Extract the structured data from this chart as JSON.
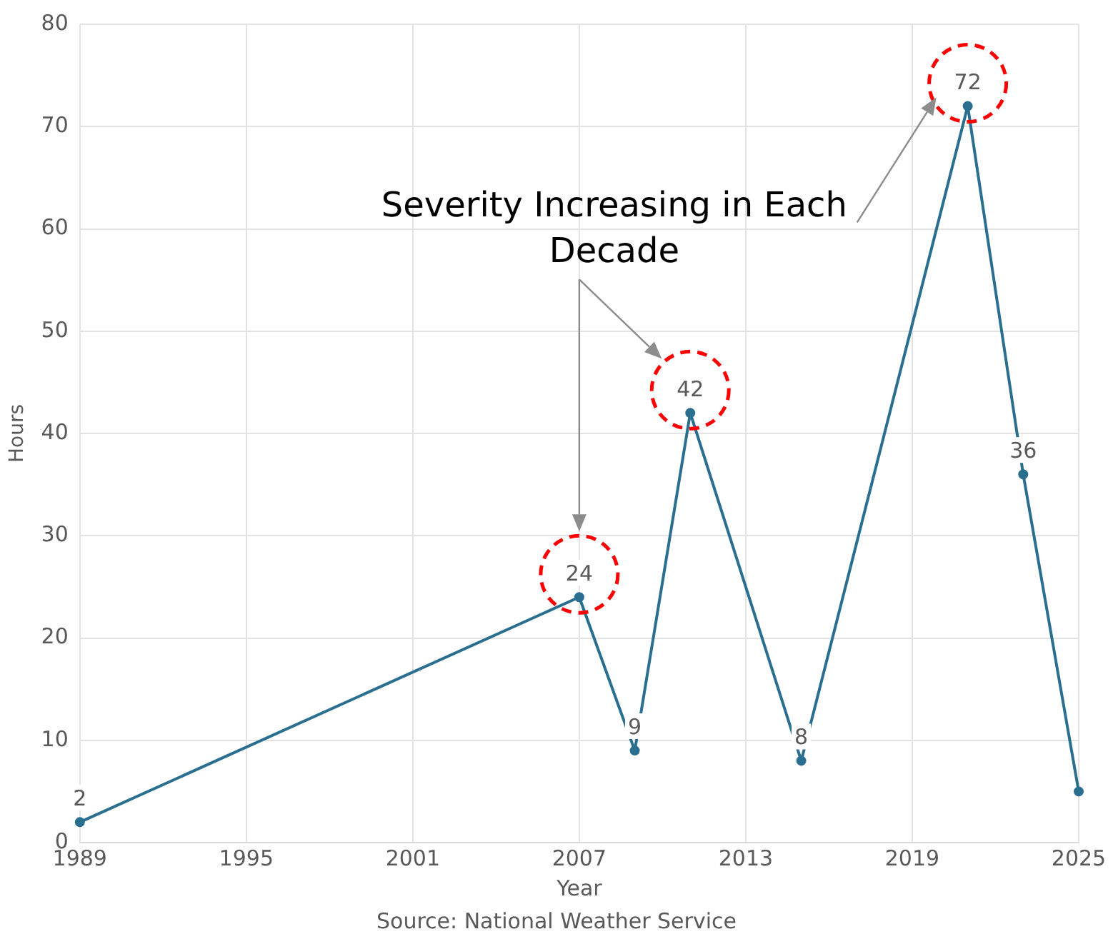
{
  "chart_data": {
    "type": "line",
    "xlabel": "Year",
    "ylabel": "Hours",
    "x": [
      1989,
      2007,
      2009,
      2011,
      2015,
      2021,
      2023,
      2025
    ],
    "series": [
      {
        "color": "#2a6f8f",
        "values": [
          2,
          24,
          9,
          42,
          8,
          72,
          36,
          5
        ],
        "value_labels": [
          "2",
          "24",
          "9",
          "42",
          "8",
          "72",
          "36",
          null
        ]
      }
    ],
    "xlim": [
      1989,
      2025
    ],
    "xticks": [
      1989,
      1995,
      2001,
      2007,
      2013,
      2019,
      2025
    ],
    "ylim": [
      0,
      80
    ],
    "yticks": [
      0,
      10,
      20,
      30,
      40,
      50,
      60,
      70,
      80
    ],
    "grid": true,
    "legend": false,
    "marker": "circle",
    "line_style": "solid",
    "annotations": [
      "Severity Increasing in Each Decade",
      "Source: National Weather Service"
    ]
  }
}
